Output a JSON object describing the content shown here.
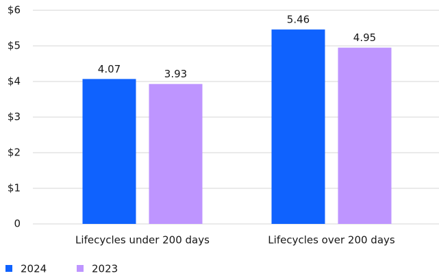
{
  "chart_data": {
    "type": "bar",
    "categories": [
      "Lifecycles under 200 days",
      "Lifecycles over 200 days"
    ],
    "series": [
      {
        "name": "2024",
        "color": "#0f62fe",
        "values": [
          4.07,
          5.46
        ]
      },
      {
        "name": "2023",
        "color": "#be95ff",
        "values": [
          3.93,
          4.95
        ]
      }
    ],
    "ylim": [
      0,
      6
    ],
    "yticks": [
      0,
      {
        "value": 1,
        "label": "$1"
      },
      {
        "value": 2,
        "label": "$2"
      },
      {
        "value": 3,
        "label": "$3"
      },
      {
        "value": 4,
        "label": "$4"
      },
      {
        "value": 5,
        "label": "$5"
      },
      {
        "value": 6,
        "label": "$6"
      }
    ],
    "grid": true,
    "legend": "bottom-left"
  }
}
